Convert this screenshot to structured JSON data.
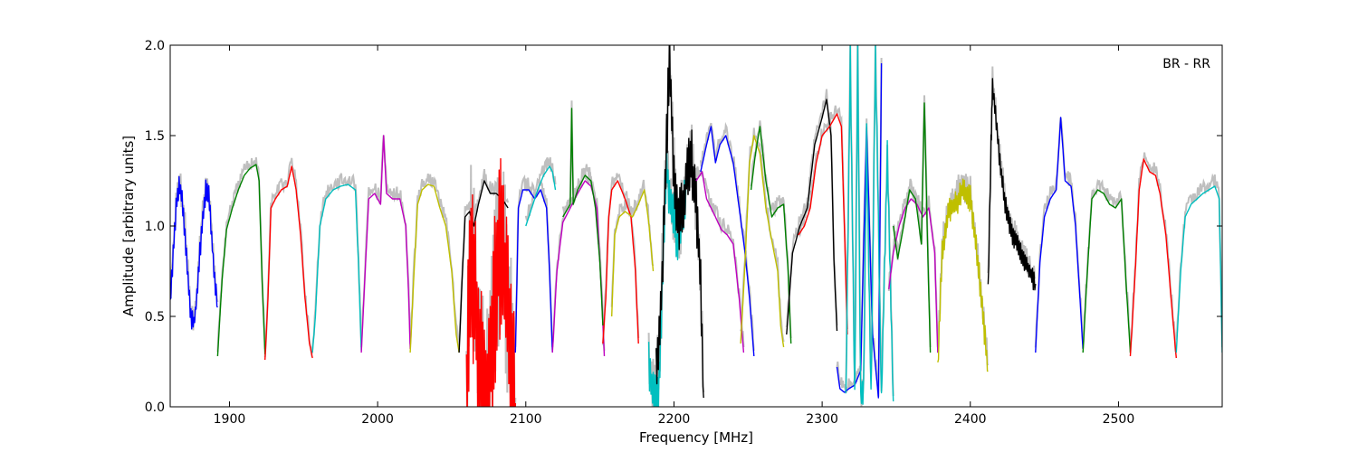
{
  "chart_data": {
    "type": "line",
    "title": "",
    "annotation": "BR - RR",
    "xlabel": "Frequency [MHz]",
    "ylabel": "Amplitude [arbitrary units]",
    "xlim": [
      1860,
      2570
    ],
    "ylim": [
      0.0,
      2.0
    ],
    "x_ticks": [
      1900,
      2000,
      2100,
      2200,
      2300,
      2400,
      2500
    ],
    "x_tick_labels": [
      "1900",
      "2000",
      "2100",
      "2200",
      "2300",
      "2400",
      "2500"
    ],
    "y_ticks": [
      0.0,
      0.5,
      1.0,
      1.5,
      2.0
    ],
    "y_tick_labels": [
      "0.0",
      "0.5",
      "1.0",
      "1.5",
      "2.0"
    ],
    "grid": false,
    "legend": "none",
    "background_trace_color": "#bfbfbf",
    "series": [
      {
        "color": "#0000ff",
        "x": [
          1860,
          1862,
          1864,
          1866,
          1868,
          1870,
          1872,
          1874,
          1876,
          1878,
          1880,
          1882,
          1884,
          1886,
          1888,
          1890,
          1892
        ],
        "y": [
          0.55,
          0.85,
          1.1,
          1.22,
          1.15,
          0.95,
          0.7,
          0.5,
          0.45,
          0.6,
          0.85,
          1.05,
          1.2,
          1.18,
          0.95,
          0.7,
          0.55
        ],
        "osc": 0.04
      },
      {
        "color": "#008000",
        "x": [
          1892,
          1895,
          1898,
          1902,
          1906,
          1910,
          1914,
          1918,
          1920,
          1922,
          1924
        ],
        "y": [
          0.28,
          0.7,
          0.98,
          1.1,
          1.2,
          1.28,
          1.32,
          1.34,
          1.25,
          0.7,
          0.29
        ]
      },
      {
        "color": "#ff0000",
        "x": [
          1924,
          1926,
          1928,
          1931,
          1935,
          1939,
          1942,
          1945,
          1948,
          1951,
          1954,
          1956
        ],
        "y": [
          0.26,
          0.6,
          1.1,
          1.15,
          1.2,
          1.22,
          1.33,
          1.2,
          0.95,
          0.6,
          0.35,
          0.27
        ]
      },
      {
        "color": "#00bfbf",
        "x": [
          1956,
          1958,
          1961,
          1965,
          1970,
          1975,
          1980,
          1985,
          1987,
          1989
        ],
        "y": [
          0.3,
          0.5,
          1.0,
          1.15,
          1.2,
          1.22,
          1.23,
          1.2,
          0.8,
          0.31
        ]
      },
      {
        "color": "#bf00bf",
        "x": [
          1989,
          1991,
          1994,
          1998,
          2002,
          2004,
          2006,
          2010,
          2015,
          2019,
          2021,
          2022
        ],
        "y": [
          0.3,
          0.65,
          1.15,
          1.18,
          1.12,
          1.5,
          1.18,
          1.15,
          1.15,
          1.0,
          0.6,
          0.32
        ]
      },
      {
        "color": "#bfbf00",
        "x": [
          2022,
          2024,
          2027,
          2030,
          2034,
          2038,
          2042,
          2046,
          2050,
          2053,
          2055
        ],
        "y": [
          0.3,
          0.65,
          1.12,
          1.2,
          1.23,
          1.22,
          1.1,
          1.0,
          0.75,
          0.4,
          0.3
        ]
      },
      {
        "color": "#000000",
        "x": [
          2055,
          2057,
          2059,
          2062,
          2065,
          2068,
          2072,
          2076,
          2080,
          2084,
          2088
        ],
        "y": [
          0.3,
          0.7,
          1.05,
          1.08,
          1.0,
          1.12,
          1.25,
          1.18,
          1.18,
          1.15,
          1.1
        ]
      },
      {
        "color": "#ff0000",
        "x": [
          2060,
          2063,
          2066,
          2069,
          2072,
          2075,
          2078,
          2081,
          2084,
          2087,
          2090,
          2093
        ],
        "y": [
          0.05,
          0.9,
          0.6,
          0.2,
          0.02,
          0.1,
          0.45,
          0.8,
          0.9,
          0.6,
          0.3,
          0.02
        ],
        "osc": 0.35
      },
      {
        "color": "#0000ff",
        "x": [
          2093,
          2095,
          2098,
          2102,
          2106,
          2110,
          2114,
          2116,
          2118
        ],
        "y": [
          0.3,
          1.1,
          1.2,
          1.2,
          1.15,
          1.2,
          1.1,
          0.75,
          0.3
        ]
      },
      {
        "color": "#00bfbf",
        "x": [
          2100,
          2104,
          2108,
          2112,
          2116,
          2118,
          2120
        ],
        "y": [
          1.0,
          1.1,
          1.2,
          1.28,
          1.33,
          1.3,
          1.2
        ]
      },
      {
        "color": "#bf00bf",
        "x": [
          2118,
          2121,
          2125,
          2130,
          2135,
          2140,
          2144,
          2148,
          2151,
          2153
        ],
        "y": [
          0.3,
          0.75,
          1.02,
          1.1,
          1.18,
          1.25,
          1.22,
          1.1,
          0.65,
          0.28
        ]
      },
      {
        "color": "#008000",
        "x": [
          2125,
          2130,
          2131,
          2132,
          2135,
          2140,
          2144,
          2147,
          2150,
          2152
        ],
        "y": [
          1.05,
          1.12,
          1.65,
          1.12,
          1.2,
          1.28,
          1.25,
          1.1,
          0.8,
          0.45
        ]
      },
      {
        "color": "#ff0000",
        "x": [
          2152,
          2154,
          2156,
          2158,
          2162,
          2167,
          2171,
          2174,
          2176
        ],
        "y": [
          0.35,
          0.6,
          1.05,
          1.2,
          1.25,
          1.15,
          1.05,
          0.75,
          0.35
        ]
      },
      {
        "color": "#bfbf00",
        "x": [
          2158,
          2160,
          2163,
          2167,
          2172,
          2176,
          2180,
          2183,
          2186
        ],
        "y": [
          0.5,
          0.95,
          1.05,
          1.08,
          1.05,
          1.12,
          1.2,
          1.02,
          0.75
        ]
      },
      {
        "color": "#00bfbf",
        "x": [
          2183,
          2185,
          2187,
          2189,
          2191,
          2193,
          2195,
          2197,
          2200,
          2202,
          2205,
          2208
        ],
        "y": [
          0.25,
          0.1,
          0.05,
          0.02,
          0.35,
          0.95,
          1.35,
          1.15,
          1.05,
          0.9,
          1.0,
          1.2
        ],
        "osc": 0.1
      },
      {
        "color": "#000000",
        "x": [
          2188,
          2191,
          2194,
          2197,
          2200,
          2203,
          2206,
          2209,
          2212,
          2215,
          2218,
          2220
        ],
        "y": [
          0.15,
          0.5,
          1.2,
          1.95,
          1.25,
          1.0,
          1.1,
          1.3,
          1.35,
          1.1,
          0.7,
          0.05
        ],
        "osc": 0.12
      },
      {
        "color": "#0000ff",
        "x": [
          2218,
          2222,
          2225,
          2228,
          2231,
          2235,
          2240,
          2244,
          2248,
          2251,
          2254
        ],
        "y": [
          1.3,
          1.45,
          1.55,
          1.35,
          1.45,
          1.5,
          1.35,
          1.1,
          0.85,
          0.6,
          0.28
        ]
      },
      {
        "color": "#bf00bf",
        "x": [
          2215,
          2219,
          2222,
          2225,
          2228,
          2232,
          2236,
          2240,
          2244,
          2247
        ],
        "y": [
          1.25,
          1.3,
          1.15,
          1.1,
          1.05,
          0.98,
          0.95,
          0.9,
          0.6,
          0.3
        ]
      },
      {
        "color": "#bfbf00",
        "x": [
          2245,
          2248,
          2251,
          2254,
          2258,
          2262,
          2266,
          2270,
          2272,
          2274
        ],
        "y": [
          0.35,
          0.8,
          1.35,
          1.5,
          1.4,
          1.1,
          0.92,
          0.75,
          0.45,
          0.33
        ]
      },
      {
        "color": "#008000",
        "x": [
          2252,
          2255,
          2258,
          2262,
          2266,
          2270,
          2274,
          2277,
          2279
        ],
        "y": [
          1.2,
          1.4,
          1.55,
          1.25,
          1.05,
          1.1,
          1.12,
          0.75,
          0.35
        ]
      },
      {
        "color": "#000000",
        "x": [
          2276,
          2280,
          2285,
          2290,
          2295,
          2300,
          2303,
          2306,
          2308,
          2310
        ],
        "y": [
          0.4,
          0.85,
          1.0,
          1.1,
          1.45,
          1.6,
          1.7,
          1.5,
          0.8,
          0.42
        ]
      },
      {
        "color": "#ff0000",
        "x": [
          2284,
          2288,
          2292,
          2296,
          2300,
          2305,
          2310,
          2313,
          2315,
          2317
        ],
        "y": [
          0.95,
          1.0,
          1.1,
          1.35,
          1.5,
          1.55,
          1.62,
          1.55,
          1.0,
          0.4
        ]
      },
      {
        "color": "#0000ff",
        "x": [
          2310,
          2312,
          2315,
          2318,
          2322,
          2326,
          2330,
          2334,
          2338,
          2340
        ],
        "y": [
          0.22,
          0.1,
          0.08,
          0.1,
          0.12,
          0.2,
          1.55,
          0.4,
          0.05,
          1.9
        ]
      },
      {
        "color": "#00bfbf",
        "x": [
          2316,
          2319,
          2322,
          2324,
          2326,
          2328,
          2330,
          2333,
          2336,
          2340,
          2344,
          2348
        ],
        "y": [
          0.02,
          1.95,
          0.05,
          2.0,
          0.05,
          0.1,
          1.5,
          0.05,
          1.98,
          0.05,
          1.4,
          0.03
        ],
        "osc": 0.05
      },
      {
        "color": "#bf00bf",
        "x": [
          2345,
          2348,
          2352,
          2356,
          2360,
          2364,
          2368,
          2372,
          2376,
          2378
        ],
        "y": [
          0.65,
          0.85,
          1.0,
          1.1,
          1.15,
          1.12,
          1.05,
          1.1,
          0.85,
          0.3
        ]
      },
      {
        "color": "#008000",
        "x": [
          2348,
          2351,
          2355,
          2359,
          2363,
          2367,
          2369,
          2371,
          2373
        ],
        "y": [
          1.0,
          0.82,
          1.0,
          1.2,
          1.15,
          0.9,
          1.68,
          0.95,
          0.3
        ]
      },
      {
        "color": "#bfbf00",
        "x": [
          2378,
          2381,
          2385,
          2390,
          2395,
          2400,
          2404,
          2408,
          2412
        ],
        "y": [
          0.22,
          0.85,
          1.08,
          1.12,
          1.2,
          1.15,
          0.9,
          0.55,
          0.2
        ],
        "osc": 0.05
      },
      {
        "color": "#000000",
        "x": [
          2412,
          2414,
          2415,
          2417,
          2420,
          2424,
          2428,
          2432,
          2436,
          2440,
          2444
        ],
        "y": [
          0.63,
          1.45,
          1.78,
          1.62,
          1.35,
          1.1,
          0.95,
          0.9,
          0.82,
          0.75,
          0.68
        ],
        "osc": 0.04
      },
      {
        "color": "#0000ff",
        "x": [
          2444,
          2447,
          2450,
          2454,
          2458,
          2461,
          2464,
          2468,
          2471,
          2474,
          2476
        ],
        "y": [
          0.3,
          0.8,
          1.05,
          1.15,
          1.2,
          1.6,
          1.25,
          1.22,
          1.0,
          0.6,
          0.32
        ]
      },
      {
        "color": "#008000",
        "x": [
          2476,
          2479,
          2482,
          2486,
          2490,
          2494,
          2498,
          2502,
          2505,
          2508
        ],
        "y": [
          0.3,
          0.75,
          1.15,
          1.2,
          1.18,
          1.12,
          1.1,
          1.15,
          0.7,
          0.3
        ]
      },
      {
        "color": "#ff0000",
        "x": [
          2508,
          2511,
          2514,
          2517,
          2521,
          2525,
          2528,
          2532,
          2536,
          2539
        ],
        "y": [
          0.28,
          0.7,
          1.2,
          1.37,
          1.3,
          1.28,
          1.18,
          0.95,
          0.55,
          0.27
        ]
      },
      {
        "color": "#00bfbf",
        "x": [
          2539,
          2542,
          2545,
          2549,
          2553,
          2557,
          2561,
          2565,
          2568,
          2570
        ],
        "y": [
          0.3,
          0.75,
          1.05,
          1.12,
          1.15,
          1.18,
          1.2,
          1.22,
          1.15,
          0.3
        ]
      }
    ]
  }
}
